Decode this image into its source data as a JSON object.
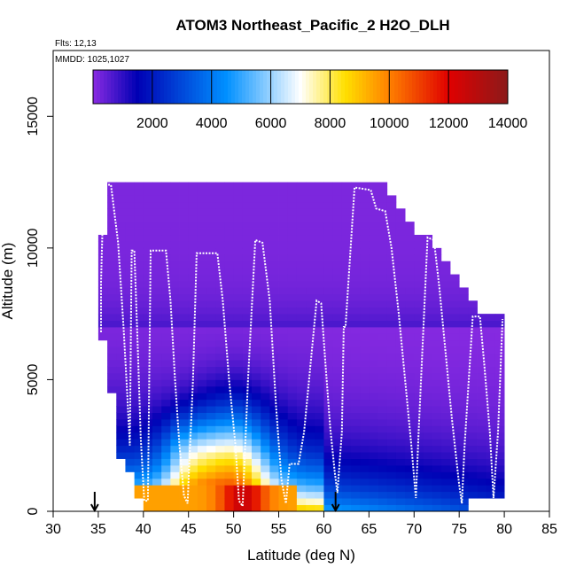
{
  "chart_data": {
    "type": "heatmap",
    "title": "ATOM3 Northeast_Pacific_2 H2O_DLH",
    "annotations": [
      "Flts: 12,13",
      "MMDD: 1025,1027"
    ],
    "xlabel": "Latitude (deg N)",
    "ylabel": "Altitude (m)",
    "xlim": [
      30,
      85
    ],
    "ylim": [
      0,
      17500
    ],
    "xticks": [
      "30",
      "35",
      "40",
      "45",
      "50",
      "55",
      "60",
      "65",
      "70",
      "75",
      "80",
      "85"
    ],
    "yticks": [
      "0",
      "5000",
      "10000",
      "15000"
    ],
    "colorbar": {
      "range": [
        0,
        14000
      ],
      "ticks": [
        "2000",
        "4000",
        "6000",
        "8000",
        "10000",
        "12000",
        "14000"
      ],
      "colors": [
        "#8a2be2",
        "#0000b4",
        "#0090ff",
        "#ffffff",
        "#ffe000",
        "#ff8000",
        "#e00000",
        "#8b1a1a"
      ]
    },
    "grid": {
      "lat_start": 35,
      "lat_end": 80,
      "lat_step": 1,
      "alt_step": 250,
      "coverage": [
        {
          "lat": 35,
          "top": 10500
        },
        {
          "lat": 36,
          "top": 12500
        },
        {
          "lat": 37,
          "top": 12500
        },
        {
          "lat": 38,
          "top": 12500
        },
        {
          "lat": 39,
          "top": 12500
        },
        {
          "lat": 40,
          "top": 12500
        },
        {
          "lat": 41,
          "top": 12500
        },
        {
          "lat": 42,
          "top": 12500
        },
        {
          "lat": 43,
          "top": 12500
        },
        {
          "lat": 44,
          "top": 12500
        },
        {
          "lat": 45,
          "top": 12500
        },
        {
          "lat": 46,
          "top": 12500
        },
        {
          "lat": 47,
          "top": 12500
        },
        {
          "lat": 48,
          "top": 12500
        },
        {
          "lat": 49,
          "top": 12500
        },
        {
          "lat": 50,
          "top": 12500
        },
        {
          "lat": 51,
          "top": 12500
        },
        {
          "lat": 52,
          "top": 12500
        },
        {
          "lat": 53,
          "top": 12500
        },
        {
          "lat": 54,
          "top": 12500
        },
        {
          "lat": 55,
          "top": 12500
        },
        {
          "lat": 56,
          "top": 12500
        },
        {
          "lat": 57,
          "top": 12500
        },
        {
          "lat": 58,
          "top": 12500
        },
        {
          "lat": 59,
          "top": 12500
        },
        {
          "lat": 60,
          "top": 12500
        },
        {
          "lat": 61,
          "top": 12500
        },
        {
          "lat": 62,
          "top": 12500
        },
        {
          "lat": 63,
          "top": 12500
        },
        {
          "lat": 64,
          "top": 12500
        },
        {
          "lat": 65,
          "top": 12500
        },
        {
          "lat": 66,
          "top": 12500
        },
        {
          "lat": 67,
          "top": 12000
        },
        {
          "lat": 68,
          "top": 11500
        },
        {
          "lat": 69,
          "top": 11000
        },
        {
          "lat": 70,
          "top": 10500
        },
        {
          "lat": 71,
          "top": 10500
        },
        {
          "lat": 72,
          "top": 10000
        },
        {
          "lat": 73,
          "top": 9500
        },
        {
          "lat": 74,
          "top": 9000
        },
        {
          "lat": 75,
          "top": 8500
        },
        {
          "lat": 76,
          "top": 8000
        },
        {
          "lat": 77,
          "top": 7500
        },
        {
          "lat": 78,
          "top": 7500
        },
        {
          "lat": 79,
          "top": 7500
        }
      ],
      "bottom_starts": [
        {
          "lat": 35,
          "bottom": 6500
        },
        {
          "lat": 36,
          "bottom": 4500
        },
        {
          "lat": 37,
          "bottom": 2000
        },
        {
          "lat": 38,
          "bottom": 1500
        },
        {
          "lat": 39,
          "bottom": 500
        },
        {
          "lat": 40,
          "bottom": 0
        }
      ],
      "right_edge_bottom": 500
    },
    "field_features": [
      {
        "name": "surface-moist-layer",
        "lat_range": [
          39,
          57
        ],
        "alt_top": 1000,
        "peak_lat": 51,
        "peak_value": 12500
      },
      {
        "name": "moist-plume",
        "center_lat": 50,
        "alt_top": 5500,
        "value": 8000
      },
      {
        "name": "dry-upper",
        "alt_min": 7000,
        "value": 200
      }
    ],
    "flight_track": [
      [
        35.3,
        6800
      ],
      [
        35.3,
        8700
      ],
      [
        35.6,
        12400
      ],
      [
        36.4,
        12400
      ],
      [
        37.2,
        10200
      ],
      [
        37.8,
        7000
      ],
      [
        38.2,
        4500
      ],
      [
        38.5,
        2500
      ],
      [
        38.7,
        9900
      ],
      [
        39.0,
        9900
      ],
      [
        39.4,
        6000
      ],
      [
        39.7,
        2800
      ],
      [
        40.1,
        400
      ],
      [
        40.5,
        400
      ],
      [
        40.8,
        9900
      ],
      [
        42.5,
        9900
      ],
      [
        43.0,
        8000
      ],
      [
        43.5,
        5000
      ],
      [
        44.0,
        2500
      ],
      [
        44.5,
        600
      ],
      [
        44.9,
        300
      ],
      [
        45.5,
        5000
      ],
      [
        45.9,
        9800
      ],
      [
        48.2,
        9800
      ],
      [
        48.8,
        8000
      ],
      [
        49.5,
        5000
      ],
      [
        50.2,
        2500
      ],
      [
        50.6,
        400
      ],
      [
        51.0,
        200
      ],
      [
        51.6,
        5000
      ],
      [
        52.4,
        10300
      ],
      [
        53.2,
        10200
      ],
      [
        54.0,
        8000
      ],
      [
        54.7,
        4000
      ],
      [
        55.3,
        1200
      ],
      [
        55.8,
        300
      ],
      [
        56.2,
        1800
      ],
      [
        57.2,
        1800
      ],
      [
        57.8,
        3000
      ],
      [
        58.5,
        5500
      ],
      [
        59.2,
        8000
      ],
      [
        59.7,
        7900
      ],
      [
        60.2,
        5500
      ],
      [
        60.7,
        3200
      ],
      [
        61.2,
        1500
      ],
      [
        61.5,
        700
      ],
      [
        62.0,
        3000
      ],
      [
        62.2,
        7000
      ],
      [
        62.4,
        7000
      ],
      [
        63.4,
        12300
      ],
      [
        65.2,
        12200
      ],
      [
        65.8,
        11500
      ],
      [
        66.8,
        11400
      ],
      [
        67.5,
        10000
      ],
      [
        68.3,
        7500
      ],
      [
        69.0,
        5000
      ],
      [
        69.7,
        2500
      ],
      [
        70.2,
        500
      ],
      [
        70.5,
        3000
      ],
      [
        71.5,
        10400
      ],
      [
        72.2,
        10300
      ],
      [
        72.8,
        8500
      ],
      [
        73.5,
        6000
      ],
      [
        74.2,
        3500
      ],
      [
        75.0,
        1000
      ],
      [
        75.3,
        300
      ],
      [
        75.6,
        2500
      ],
      [
        76.5,
        7400
      ],
      [
        77.3,
        7400
      ],
      [
        77.8,
        5500
      ],
      [
        78.4,
        3000
      ],
      [
        78.8,
        500
      ],
      [
        79.3,
        3000
      ],
      [
        79.8,
        7300
      ]
    ],
    "arrows": [
      {
        "lat": 34.6
      },
      {
        "lat": 61.3
      }
    ]
  }
}
